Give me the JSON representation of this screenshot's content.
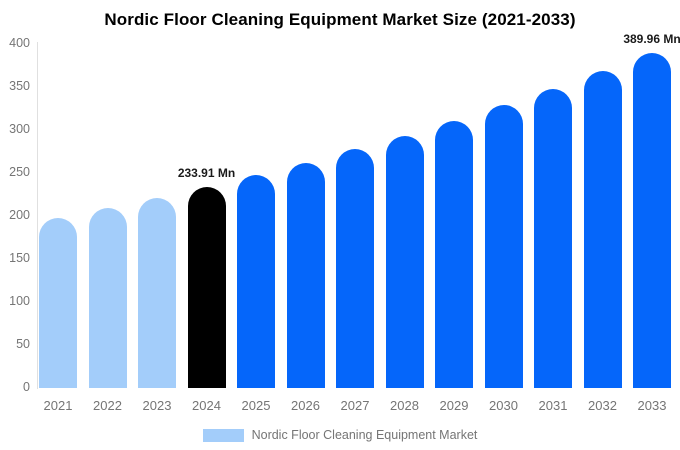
{
  "chart_data": {
    "type": "bar",
    "title": "Nordic Floor Cleaning Equipment Market Size (2021-2033)",
    "categories": [
      "2021",
      "2022",
      "2023",
      "2024",
      "2025",
      "2026",
      "2027",
      "2028",
      "2029",
      "2030",
      "2031",
      "2032",
      "2033"
    ],
    "series": [
      {
        "name": "Nordic Floor Cleaning Equipment Market",
        "values": [
          197.3,
          208.8,
          221.0,
          233.91,
          247.6,
          262.0,
          277.4,
          293.6,
          310.7,
          328.9,
          348.1,
          368.4,
          389.96
        ]
      }
    ],
    "ylim": [
      0,
      400
    ],
    "yticks": [
      0,
      50,
      100,
      150,
      200,
      250,
      300,
      350,
      400
    ],
    "grid": false,
    "legend_position": "bottom",
    "bar_colors": [
      "#A3CDFA",
      "#A3CDFA",
      "#A3CDFA",
      "#000000",
      "#0566FA",
      "#0566FA",
      "#0566FA",
      "#0566FA",
      "#0566FA",
      "#0566FA",
      "#0566FA",
      "#0566FA",
      "#0566FA"
    ],
    "annotations": [
      {
        "category": "2024",
        "label": "233.91 Mn"
      },
      {
        "category": "2033",
        "label": "389.96 Mn"
      }
    ]
  },
  "colors": {
    "historical_bar": "#A3CDFA",
    "base_year_bar": "#000000",
    "forecast_bar": "#0566FA",
    "axis_text": "#757575",
    "axis_line": "#e0e0e0",
    "annotation_text": "#1a1a1a"
  },
  "legend": {
    "label": "Nordic Floor Cleaning Equipment Market",
    "swatch_color": "#A3CDFA"
  }
}
